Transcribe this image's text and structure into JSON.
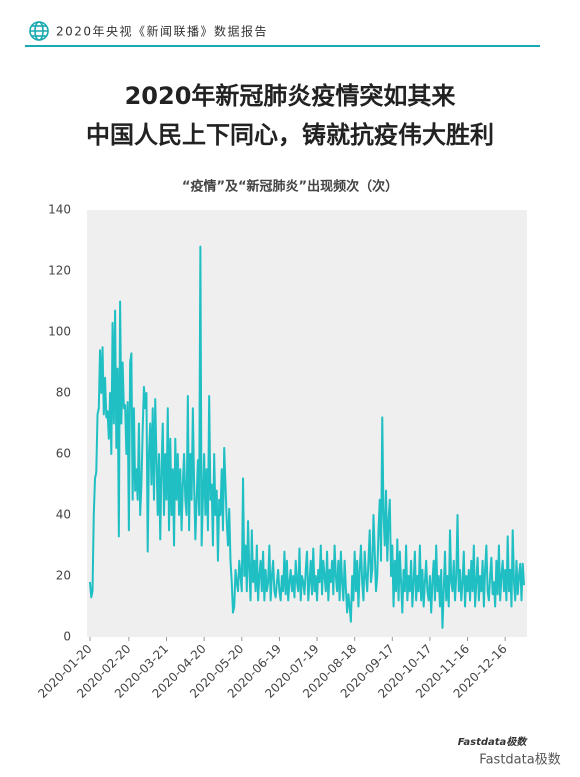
{
  "header": {
    "report": "2020年央视《新闻联播》数据报告"
  },
  "title_lines": [
    "2020年新冠肺炎疫情突如其来",
    "中国人民上下同心，铸就抗疫伟大胜利"
  ],
  "chart_data": {
    "type": "line",
    "title": "“疫情”及“新冠肺炎”出现频次（次）",
    "categories": [
      "2020-01-20",
      null,
      null,
      null,
      null,
      null,
      null,
      null,
      null,
      null,
      null,
      null,
      null,
      null,
      null,
      null,
      null,
      null,
      null,
      null,
      null,
      null,
      null,
      null,
      null,
      null,
      null,
      null,
      null,
      null,
      null,
      "2020-02-20",
      null,
      null,
      null,
      null,
      null,
      null,
      null,
      null,
      null,
      null,
      null,
      null,
      null,
      null,
      null,
      null,
      null,
      null,
      null,
      null,
      null,
      null,
      null,
      null,
      null,
      null,
      null,
      null,
      null,
      "2020-03-21",
      null,
      null,
      null,
      null,
      null,
      null,
      null,
      null,
      null,
      null,
      null,
      null,
      null,
      null,
      null,
      null,
      null,
      null,
      null,
      null,
      null,
      null,
      null,
      null,
      null,
      null,
      null,
      null,
      null,
      "2020-04-20",
      null,
      null,
      null,
      null,
      null,
      null,
      null,
      null,
      null,
      null,
      null,
      null,
      null,
      null,
      null,
      null,
      null,
      null,
      null,
      null,
      null,
      null,
      null,
      null,
      null,
      null,
      null,
      null,
      null,
      "2020-05-20",
      null,
      null,
      null,
      null,
      null,
      null,
      null,
      null,
      null,
      null,
      null,
      null,
      null,
      null,
      null,
      null,
      null,
      null,
      null,
      null,
      null,
      null,
      null,
      null,
      null,
      null,
      null,
      null,
      null,
      "2020-06-19",
      null,
      null,
      null,
      null,
      null,
      null,
      null,
      null,
      null,
      null,
      null,
      null,
      null,
      null,
      null,
      null,
      null,
      null,
      null,
      null,
      null,
      null,
      null,
      null,
      null,
      null,
      null,
      null,
      null,
      "2020-07-19",
      null,
      null,
      null,
      null,
      null,
      null,
      null,
      null,
      null,
      null,
      null,
      null,
      null,
      null,
      null,
      null,
      null,
      null,
      null,
      null,
      null,
      null,
      null,
      null,
      null,
      null,
      null,
      null,
      null,
      "2020-08-18",
      null,
      null,
      null,
      null,
      null,
      null,
      null,
      null,
      null,
      null,
      null,
      null,
      null,
      null,
      null,
      null,
      null,
      null,
      null,
      null,
      null,
      null,
      null,
      null,
      null,
      null,
      null,
      null,
      null,
      "2020-09-17",
      null,
      null,
      null,
      null,
      null,
      null,
      null,
      null,
      null,
      null,
      null,
      null,
      null,
      null,
      null,
      null,
      null,
      null,
      null,
      null,
      null,
      null,
      null,
      null,
      null,
      null,
      null,
      null,
      null,
      "2020-10-17",
      null,
      null,
      null,
      null,
      null,
      null,
      null,
      null,
      null,
      null,
      null,
      null,
      null,
      null,
      null,
      null,
      null,
      null,
      null,
      null,
      null,
      null,
      null,
      null,
      null,
      null,
      null,
      null,
      null,
      "2020-11-16",
      null,
      null,
      null,
      null,
      null,
      null,
      null,
      null,
      null,
      null,
      null,
      null,
      null,
      null,
      null,
      null,
      null,
      null,
      null,
      null,
      null,
      null,
      null,
      null,
      null,
      null,
      null,
      null,
      null,
      "2020-12-16",
      null,
      null,
      null,
      null,
      null,
      null,
      null,
      null,
      null,
      null,
      null,
      null,
      null,
      null,
      null
    ],
    "series": [
      {
        "name": "频次",
        "color": "#1fbfc3",
        "values": [
          18,
          13,
          15,
          40,
          52,
          54,
          73,
          75,
          94,
          80,
          95,
          73,
          85,
          72,
          74,
          65,
          80,
          60,
          103,
          70,
          107,
          62,
          88,
          33,
          110,
          70,
          90,
          75,
          76,
          60,
          77,
          35,
          90,
          93,
          45,
          75,
          48,
          55,
          45,
          70,
          40,
          50,
          68,
          82,
          75,
          80,
          28,
          60,
          70,
          50,
          75,
          45,
          78,
          58,
          40,
          60,
          32,
          55,
          70,
          40,
          60,
          45,
          75,
          35,
          65,
          40,
          55,
          30,
          65,
          45,
          60,
          40,
          55,
          35,
          50,
          60,
          45,
          40,
          79,
          35,
          60,
          45,
          75,
          50,
          32,
          45,
          58,
          40,
          128,
          30,
          45,
          60,
          40,
          55,
          35,
          79,
          45,
          50,
          30,
          60,
          40,
          48,
          25,
          45,
          40,
          55,
          35,
          62,
          50,
          38,
          30,
          42,
          25,
          18,
          8,
          10,
          22,
          18,
          15,
          25,
          20,
          15,
          52,
          20,
          30,
          15,
          38,
          22,
          12,
          35,
          18,
          25,
          15,
          30,
          12,
          20,
          25,
          15,
          28,
          12,
          22,
          15,
          18,
          30,
          12,
          20,
          25,
          15,
          13,
          18,
          22,
          15,
          12,
          20,
          15,
          28,
          14,
          25,
          12,
          18,
          22,
          15,
          20,
          13,
          25,
          18,
          15,
          29,
          12,
          20,
          18,
          14,
          22,
          28,
          12,
          18,
          25,
          14,
          29,
          15,
          20,
          12,
          22,
          18,
          30,
          14,
          25,
          20,
          15,
          28,
          12,
          22,
          18,
          25,
          14,
          30,
          20,
          15,
          25,
          12,
          28,
          18,
          12,
          25,
          16,
          8,
          14,
          10,
          5,
          20,
          12,
          28,
          15,
          25,
          10,
          22,
          30,
          18,
          12,
          28,
          20,
          15,
          25,
          35,
          18,
          22,
          40,
          28,
          15,
          20,
          35,
          45,
          25,
          72,
          40,
          30,
          48,
          25,
          38,
          45,
          20,
          30,
          10,
          25,
          15,
          32,
          12,
          28,
          18,
          8,
          22,
          15,
          30,
          12,
          20,
          15,
          25,
          10,
          18,
          28,
          12,
          20,
          15,
          30,
          12,
          22,
          10,
          18,
          25,
          15,
          12,
          20,
          8,
          18,
          25,
          12,
          30,
          15,
          20,
          10,
          22,
          3,
          15,
          28,
          12,
          20,
          10,
          35,
          18,
          15,
          25,
          12,
          20,
          40,
          15,
          22,
          12,
          18,
          28,
          10,
          20,
          15,
          22,
          12,
          25,
          15,
          30,
          10,
          18,
          26,
          12,
          20,
          15,
          25,
          10,
          22,
          30,
          15,
          12,
          20,
          26,
          14,
          18,
          10,
          25,
          14,
          30,
          12,
          20,
          25,
          15,
          22,
          12,
          33,
          15,
          22,
          10,
          35,
          18,
          12,
          25,
          14,
          20,
          24,
          12,
          24,
          17
        ]
      }
    ],
    "ylim": [
      0,
      140
    ],
    "yticks": [
      0,
      20,
      40,
      60,
      80,
      100,
      120,
      140
    ],
    "grid": false
  },
  "footer": {
    "logo": "Fastdata极数",
    "watermark": "Fastdata极数"
  }
}
